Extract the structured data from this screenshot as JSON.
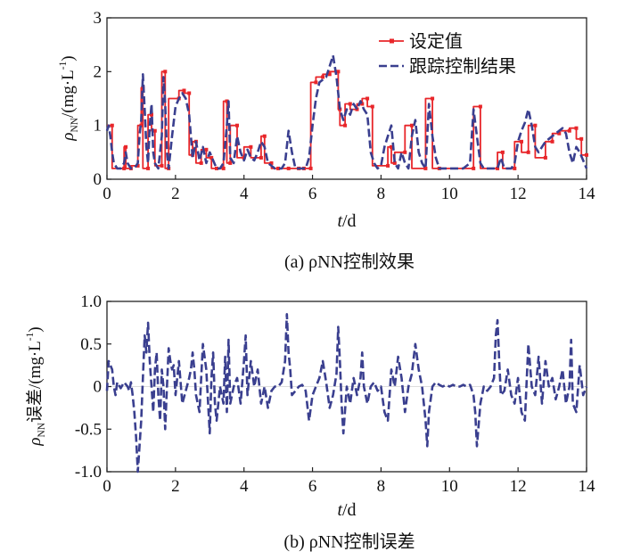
{
  "chart_data": [
    {
      "type": "line",
      "xlabel": "t/d",
      "ylabel": "ρNN/(mg·L-1)",
      "xlim": [
        0,
        14
      ],
      "ylim": [
        0,
        3
      ],
      "xticks": [
        "0",
        "2",
        "4",
        "6",
        "8",
        "10",
        "12",
        "14"
      ],
      "yticks": [
        "0",
        "1",
        "2",
        "3"
      ],
      "legend_position": "top-right",
      "caption": "(a) ρNN控制效果",
      "series": [
        {
          "name": "设定值",
          "color": "#e8262a",
          "style": "solid-with-markers",
          "x": [
            0,
            0.15,
            0.15,
            0.5,
            0.5,
            0.55,
            0.55,
            0.7,
            0.7,
            0.9,
            0.9,
            1.0,
            1.0,
            1.05,
            1.05,
            1.2,
            1.2,
            1.3,
            1.3,
            1.4,
            1.4,
            1.6,
            1.6,
            1.7,
            1.7,
            1.8,
            1.8,
            2.1,
            2.1,
            2.25,
            2.25,
            2.4,
            2.4,
            2.5,
            2.5,
            2.6,
            2.6,
            2.75,
            2.75,
            2.9,
            2.9,
            3.05,
            3.05,
            3.2,
            3.2,
            3.4,
            3.4,
            3.5,
            3.5,
            3.6,
            3.6,
            3.8,
            3.8,
            4.0,
            4.0,
            4.2,
            4.2,
            4.5,
            4.5,
            4.6,
            4.6,
            4.8,
            4.8,
            5.0,
            5.0,
            5.3,
            5.3,
            5.6,
            5.6,
            5.75,
            5.75,
            5.95,
            5.95,
            6.1,
            6.1,
            6.3,
            6.3,
            6.5,
            6.5,
            6.75,
            6.75,
            6.8,
            6.8,
            6.95,
            6.95,
            7.1,
            7.1,
            7.3,
            7.3,
            7.45,
            7.45,
            7.6,
            7.6,
            7.75,
            7.75,
            8.2,
            8.2,
            8.3,
            8.3,
            8.4,
            8.4,
            8.7,
            8.7,
            8.9,
            8.9,
            9.3,
            9.3,
            9.5,
            9.5,
            9.7,
            9.7,
            10.7,
            10.7,
            10.9,
            10.9,
            11.4,
            11.4,
            11.55,
            11.55,
            11.9,
            11.9,
            12.1,
            12.1,
            12.3,
            12.3,
            12.5,
            12.5,
            12.8,
            12.8,
            13.0,
            13.0,
            13.2,
            13.2,
            13.5,
            13.5,
            13.7,
            13.7,
            13.85,
            13.85,
            14.0
          ],
          "y": [
            1.0,
            1.0,
            0.2,
            0.2,
            0.6,
            0.6,
            0.2,
            0.2,
            0.25,
            0.25,
            1.0,
            1.0,
            1.7,
            1.7,
            0.2,
            0.2,
            1.2,
            1.2,
            0.9,
            0.9,
            0.25,
            0.25,
            2.0,
            2.0,
            0.2,
            0.2,
            1.5,
            1.5,
            1.65,
            1.65,
            1.6,
            1.6,
            0.45,
            0.45,
            0.7,
            0.7,
            0.3,
            0.3,
            0.55,
            0.55,
            0.4,
            0.4,
            0.2,
            0.2,
            0.2,
            0.2,
            1.45,
            1.45,
            0.3,
            0.3,
            1.0,
            1.0,
            0.4,
            0.4,
            0.6,
            0.6,
            0.4,
            0.4,
            0.8,
            0.8,
            0.3,
            0.3,
            0.2,
            0.2,
            0.2,
            0.2,
            0.2,
            0.2,
            0.2,
            0.2,
            0.2,
            0.2,
            1.8,
            1.8,
            1.9,
            1.9,
            1.95,
            1.95,
            2.0,
            2.0,
            1.3,
            1.3,
            1.0,
            1.0,
            1.4,
            1.4,
            1.3,
            1.3,
            1.4,
            1.4,
            1.5,
            1.5,
            1.35,
            1.35,
            0.25,
            0.25,
            0.6,
            0.6,
            0.3,
            0.3,
            0.5,
            0.5,
            1.0,
            1.0,
            0.2,
            0.2,
            1.5,
            1.5,
            0.2,
            0.2,
            0.2,
            0.2,
            1.35,
            1.35,
            0.2,
            0.2,
            0.5,
            0.5,
            0.2,
            0.2,
            0.7,
            0.7,
            0.5,
            0.5,
            1.0,
            1.0,
            0.4,
            0.4,
            0.7,
            0.7,
            0.85,
            0.85,
            0.9,
            0.9,
            0.95,
            0.95,
            0.75,
            0.75,
            0.45,
            0.45
          ]
        },
        {
          "name": "跟踪控制结果",
          "color": "#3a3f8f",
          "style": "dashed",
          "x": [
            0,
            0.05,
            0.1,
            0.15,
            0.2,
            0.3,
            0.4,
            0.5,
            0.55,
            0.6,
            0.7,
            0.8,
            0.9,
            0.95,
            1.0,
            1.05,
            1.1,
            1.15,
            1.2,
            1.25,
            1.3,
            1.35,
            1.4,
            1.5,
            1.6,
            1.65,
            1.7,
            1.75,
            1.8,
            1.9,
            2.0,
            2.1,
            2.2,
            2.3,
            2.4,
            2.5,
            2.6,
            2.7,
            2.8,
            2.9,
            3.0,
            3.1,
            3.2,
            3.3,
            3.4,
            3.5,
            3.55,
            3.6,
            3.7,
            3.8,
            3.9,
            4.0,
            4.1,
            4.2,
            4.3,
            4.4,
            4.5,
            4.6,
            4.7,
            4.8,
            4.9,
            5.0,
            5.1,
            5.2,
            5.3,
            5.4,
            5.5,
            5.6,
            5.7,
            5.8,
            5.9,
            6.0,
            6.1,
            6.2,
            6.3,
            6.4,
            6.5,
            6.6,
            6.7,
            6.8,
            6.9,
            7.0,
            7.1,
            7.2,
            7.3,
            7.4,
            7.5,
            7.6,
            7.7,
            7.8,
            7.9,
            8.0,
            8.1,
            8.2,
            8.3,
            8.4,
            8.5,
            8.6,
            8.7,
            8.8,
            8.9,
            9.0,
            9.1,
            9.2,
            9.3,
            9.4,
            9.5,
            9.6,
            9.7,
            9.8,
            10.0,
            10.2,
            10.4,
            10.6,
            10.7,
            10.8,
            10.9,
            11.0,
            11.2,
            11.4,
            11.5,
            11.6,
            11.7,
            11.8,
            11.9,
            12.0,
            12.1,
            12.2,
            12.3,
            12.4,
            12.5,
            12.6,
            12.7,
            12.8,
            12.9,
            13.0,
            13.1,
            13.2,
            13.3,
            13.4,
            13.5,
            13.6,
            13.7,
            13.8,
            13.9,
            14.0
          ],
          "y": [
            0.9,
            1.0,
            0.8,
            0.5,
            0.3,
            0.2,
            0.2,
            0.3,
            0.5,
            0.3,
            0.2,
            0.2,
            0.3,
            0.8,
            1.1,
            1.95,
            1.3,
            0.6,
            0.3,
            1.0,
            1.4,
            0.5,
            0.3,
            0.2,
            0.8,
            1.9,
            1.4,
            0.5,
            0.2,
            0.8,
            1.35,
            1.5,
            1.6,
            1.5,
            1.2,
            0.4,
            0.7,
            0.35,
            0.6,
            0.3,
            0.5,
            0.35,
            0.2,
            0.2,
            0.3,
            1.0,
            1.45,
            0.4,
            0.3,
            0.8,
            0.5,
            0.35,
            0.55,
            0.4,
            0.35,
            0.5,
            0.7,
            0.6,
            0.3,
            0.25,
            0.2,
            0.2,
            0.2,
            0.3,
            0.9,
            0.5,
            0.2,
            0.2,
            0.2,
            0.2,
            0.4,
            1.0,
            1.5,
            1.8,
            1.85,
            1.9,
            2.1,
            2.3,
            1.9,
            1.3,
            1.1,
            1.3,
            1.2,
            1.4,
            1.3,
            1.45,
            1.3,
            1.2,
            0.5,
            0.3,
            0.2,
            0.25,
            0.6,
            0.8,
            1.0,
            0.3,
            0.2,
            0.5,
            0.3,
            0.2,
            0.8,
            1.1,
            0.5,
            0.3,
            0.2,
            1.4,
            0.8,
            0.4,
            0.2,
            0.2,
            0.2,
            0.2,
            0.2,
            0.3,
            1.3,
            0.8,
            0.3,
            0.2,
            0.2,
            0.2,
            0.4,
            0.2,
            0.2,
            0.2,
            0.3,
            0.7,
            0.9,
            1.05,
            1.3,
            1.0,
            0.6,
            0.5,
            0.6,
            0.7,
            0.75,
            0.8,
            0.85,
            0.9,
            0.95,
            0.85,
            0.5,
            0.3,
            0.6,
            0.5,
            0.35,
            0.2
          ]
        }
      ]
    },
    {
      "type": "line",
      "xlabel": "t/d",
      "ylabel": "ρNN误差/(mg·L-1)",
      "xlim": [
        0,
        14
      ],
      "ylim": [
        -1.0,
        1.0
      ],
      "xticks": [
        "0",
        "2",
        "4",
        "6",
        "8",
        "10",
        "12",
        "14"
      ],
      "yticks": [
        "-1.0",
        "-0.5",
        "0",
        "0.5",
        "1.0"
      ],
      "caption": "(b) ρNN控制误差",
      "series": [
        {
          "name": "",
          "color": "#3a3f8f",
          "style": "dashed",
          "x": [
            0,
            0.05,
            0.1,
            0.15,
            0.2,
            0.25,
            0.3,
            0.4,
            0.5,
            0.6,
            0.65,
            0.7,
            0.75,
            0.8,
            0.85,
            0.9,
            0.95,
            1.0,
            1.05,
            1.1,
            1.15,
            1.2,
            1.25,
            1.3,
            1.35,
            1.4,
            1.45,
            1.5,
            1.55,
            1.6,
            1.65,
            1.7,
            1.75,
            1.8,
            1.85,
            1.9,
            1.95,
            2.0,
            2.1,
            2.2,
            2.3,
            2.4,
            2.45,
            2.5,
            2.55,
            2.6,
            2.7,
            2.8,
            2.9,
            3.0,
            3.05,
            3.1,
            3.15,
            3.2,
            3.3,
            3.4,
            3.45,
            3.5,
            3.55,
            3.6,
            3.7,
            3.8,
            3.9,
            4.0,
            4.05,
            4.1,
            4.2,
            4.3,
            4.4,
            4.5,
            4.6,
            4.7,
            4.8,
            4.9,
            5.0,
            5.1,
            5.2,
            5.25,
            5.3,
            5.35,
            5.4,
            5.5,
            5.6,
            5.7,
            5.8,
            5.9,
            6.0,
            6.1,
            6.2,
            6.3,
            6.4,
            6.5,
            6.6,
            6.7,
            6.75,
            6.8,
            6.85,
            6.9,
            7.0,
            7.1,
            7.2,
            7.3,
            7.4,
            7.45,
            7.5,
            7.6,
            7.7,
            7.8,
            7.9,
            8.0,
            8.1,
            8.2,
            8.3,
            8.4,
            8.5,
            8.6,
            8.7,
            8.8,
            8.9,
            9.0,
            9.1,
            9.2,
            9.3,
            9.35,
            9.4,
            9.5,
            9.6,
            9.7,
            9.8,
            9.9,
            10.0,
            10.1,
            10.2,
            10.3,
            10.4,
            10.5,
            10.6,
            10.7,
            10.75,
            10.8,
            10.9,
            11.0,
            11.1,
            11.2,
            11.3,
            11.35,
            11.4,
            11.45,
            11.5,
            11.6,
            11.7,
            11.8,
            11.9,
            12.0,
            12.1,
            12.2,
            12.3,
            12.4,
            12.5,
            12.6,
            12.7,
            12.8,
            12.9,
            13.0,
            13.1,
            13.2,
            13.3,
            13.4,
            13.5,
            13.55,
            13.6,
            13.7,
            13.8,
            13.9,
            14.0
          ],
          "y": [
            -0.05,
            0.3,
            0.25,
            0.2,
            0.0,
            -0.1,
            0.05,
            -0.02,
            0.05,
            0.0,
            -0.05,
            0.05,
            -0.1,
            -0.3,
            -0.6,
            -1.0,
            -0.7,
            -0.4,
            0.1,
            0.6,
            0.4,
            0.75,
            0.3,
            0.0,
            -0.3,
            0.2,
            0.4,
            -0.1,
            -0.4,
            0.2,
            0.0,
            -0.5,
            0.0,
            0.45,
            0.3,
            0.2,
            0.25,
            -0.1,
            0.3,
            -0.2,
            -0.05,
            0.1,
            0.2,
            0.4,
            0.2,
            -0.1,
            -0.3,
            0.5,
            0.2,
            -0.55,
            0.1,
            0.4,
            -0.2,
            -0.4,
            0.0,
            -0.2,
            0.35,
            -0.3,
            0.55,
            -0.2,
            0.0,
            0.1,
            -0.2,
            0.3,
            0.6,
            -0.1,
            0.3,
            0.0,
            0.2,
            -0.2,
            0.0,
            -0.25,
            -0.05,
            0.0,
            0.0,
            0.05,
            0.3,
            0.85,
            0.4,
            0.2,
            -0.1,
            -0.05,
            0.0,
            0.02,
            -0.05,
            -0.4,
            -0.1,
            0.0,
            0.1,
            0.3,
            0.05,
            -0.25,
            -0.1,
            0.15,
            0.7,
            0.3,
            -0.2,
            -0.55,
            0.0,
            -0.2,
            0.1,
            -0.1,
            0.1,
            0.4,
            0.0,
            -0.2,
            0.0,
            0.05,
            -0.05,
            0.0,
            -0.3,
            -0.4,
            0.2,
            0.0,
            0.35,
            0.1,
            -0.3,
            0.0,
            0.15,
            0.5,
            0.2,
            0.0,
            -0.4,
            -0.7,
            -0.3,
            0.0,
            0.05,
            0.02,
            0.0,
            0.02,
            0.0,
            0.02,
            0.0,
            0.0,
            0.02,
            0.0,
            0.02,
            -0.1,
            -0.3,
            -0.7,
            -0.2,
            0.0,
            -0.05,
            0.0,
            0.1,
            0.6,
            0.78,
            0.3,
            -0.1,
            -0.05,
            0.2,
            -0.1,
            -0.2,
            0.1,
            -0.3,
            -0.4,
            0.5,
            0.0,
            -0.1,
            0.35,
            -0.2,
            0.3,
            0.0,
            0.1,
            -0.15,
            0.0,
            0.2,
            -0.2,
            0.0,
            0.55,
            -0.2,
            -0.3,
            0.25,
            -0.1,
            0.0
          ]
        }
      ]
    }
  ]
}
